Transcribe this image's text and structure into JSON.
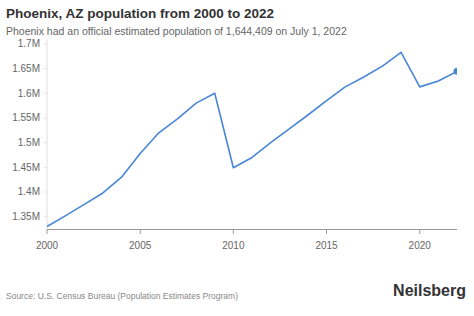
{
  "chart_data": {
    "type": "line",
    "title": "Phoenix, AZ population from 2000 to 2022",
    "subtitle": "Phoenix had an official estimated population of 1,644,409 on July 1, 2022",
    "source": "Source: U.S. Census Bureau (Population Estimates Program)",
    "logo": "Neilsberg",
    "x": [
      2000,
      2001,
      2002,
      2003,
      2004,
      2005,
      2006,
      2007,
      2008,
      2009,
      2010,
      2011,
      2012,
      2013,
      2014,
      2015,
      2016,
      2017,
      2018,
      2019,
      2020,
      2021,
      2022
    ],
    "values": [
      1330000,
      1352000,
      1375000,
      1398000,
      1430000,
      1478000,
      1520000,
      1548000,
      1580000,
      1600000,
      1449000,
      1470000,
      1500000,
      1528000,
      1556000,
      1585000,
      1613000,
      1633000,
      1655000,
      1683000,
      1613000,
      1625000,
      1644409
    ],
    "color": "#4a86d6",
    "marker": "end",
    "xlim": [
      2000,
      2022
    ],
    "xticks": [
      2000,
      2005,
      2010,
      2015,
      2020
    ],
    "ylim": [
      1325000,
      1710000
    ],
    "yticks": [
      {
        "value": 1350000,
        "label": "1.35M"
      },
      {
        "value": 1400000,
        "label": "1.4M"
      },
      {
        "value": 1450000,
        "label": "1.45M"
      },
      {
        "value": 1500000,
        "label": "1.5M"
      },
      {
        "value": 1550000,
        "label": "1.55M"
      },
      {
        "value": 1600000,
        "label": "1.6M"
      },
      {
        "value": 1650000,
        "label": "1.65M"
      },
      {
        "value": 1700000,
        "label": "1.7M"
      }
    ],
    "grid": false
  }
}
